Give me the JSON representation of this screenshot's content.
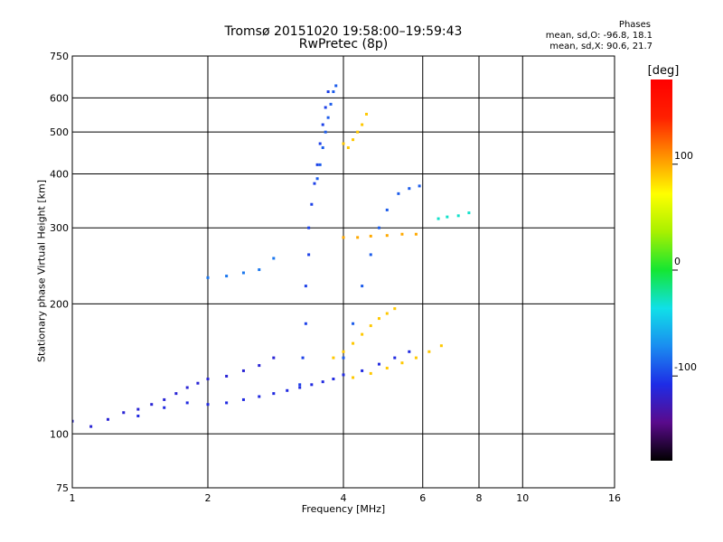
{
  "title": "Tromsø 20151020 19:58:00–19:59:43",
  "subtitle": "RwPretec (8p)",
  "phases": {
    "header": "Phases",
    "o_line": "mean, sd,O: -96.8, 18.1",
    "x_line": "mean, sd,X:  90.6, 21.7"
  },
  "colorbar": {
    "unit": "[deg]",
    "ticks": [
      {
        "value": 100,
        "label": "100"
      },
      {
        "value": 0,
        "label": "0"
      },
      {
        "value": -100,
        "label": "-100"
      }
    ],
    "range": [
      -180,
      180
    ],
    "colors": [
      "#000000",
      "#5a0a8c",
      "#1e2ce6",
      "#1a8cf0",
      "#10e0e8",
      "#14e632",
      "#a8f000",
      "#ffff00",
      "#ff9000",
      "#ff2000",
      "#ff0000"
    ]
  },
  "colors": {
    "o_mode": "#3c28d0",
    "x_mode": "#ffe41a",
    "grid": "#000000"
  },
  "chart_data": {
    "type": "scatter",
    "title": "Tromsø 20151020 19:58:00–19:59:43",
    "subtitle": "RwPretec (8p)",
    "xlabel": "Frequency [MHz]",
    "ylabel": "Stationary phase Virtual Height [km]",
    "x_scale": "log",
    "y_scale": "log",
    "xlim": [
      1,
      16
    ],
    "ylim": [
      75,
      750
    ],
    "x_ticks": [
      1,
      2,
      4,
      6,
      8,
      10,
      16
    ],
    "y_ticks": [
      75,
      100,
      200,
      300,
      400,
      500,
      600,
      750
    ],
    "grid": true,
    "color_scale": "phase [deg], -180 to 180",
    "traces": [
      {
        "name": "",
        "phase_deg": -115,
        "points": [
          [
            1.0,
            107
          ],
          [
            1.1,
            104
          ],
          [
            1.2,
            108
          ],
          [
            1.3,
            112
          ],
          [
            1.4,
            114
          ],
          [
            1.5,
            117
          ],
          [
            1.6,
            120
          ],
          [
            1.7,
            124
          ],
          [
            1.8,
            128
          ],
          [
            1.9,
            131
          ],
          [
            2.0,
            134
          ],
          [
            2.2,
            136
          ],
          [
            2.4,
            140
          ],
          [
            2.6,
            144
          ],
          [
            2.8,
            150
          ]
        ]
      },
      {
        "name": "",
        "phase_deg": -110,
        "points": [
          [
            1.4,
            110
          ],
          [
            1.6,
            115
          ],
          [
            1.8,
            118
          ],
          [
            2.0,
            117
          ],
          [
            2.2,
            118
          ],
          [
            2.4,
            120
          ],
          [
            2.6,
            122
          ],
          [
            2.8,
            124
          ],
          [
            3.0,
            126
          ],
          [
            3.2,
            128
          ],
          [
            3.4,
            130
          ],
          [
            3.6,
            132
          ],
          [
            3.8,
            134
          ],
          [
            4.0,
            137
          ],
          [
            4.4,
            140
          ],
          [
            4.8,
            145
          ],
          [
            5.2,
            150
          ],
          [
            5.6,
            155
          ]
        ]
      },
      {
        "name": "",
        "phase_deg": -100,
        "points": [
          [
            3.2,
            130
          ],
          [
            3.25,
            150
          ],
          [
            3.3,
            180
          ],
          [
            3.3,
            220
          ],
          [
            3.35,
            260
          ],
          [
            3.35,
            300
          ],
          [
            3.4,
            340
          ],
          [
            3.45,
            380
          ],
          [
            3.5,
            420
          ],
          [
            3.55,
            470
          ],
          [
            3.6,
            520
          ],
          [
            3.65,
            570
          ],
          [
            3.7,
            620
          ]
        ]
      },
      {
        "name": "",
        "phase_deg": -90,
        "points": [
          [
            3.5,
            390
          ],
          [
            3.55,
            420
          ],
          [
            3.6,
            460
          ],
          [
            3.65,
            500
          ],
          [
            3.7,
            540
          ],
          [
            3.75,
            580
          ],
          [
            3.8,
            620
          ],
          [
            3.85,
            640
          ]
        ]
      },
      {
        "name": "",
        "phase_deg": -90,
        "points": [
          [
            4.0,
            150
          ],
          [
            4.2,
            180
          ],
          [
            4.4,
            220
          ],
          [
            4.6,
            260
          ],
          [
            4.8,
            300
          ],
          [
            5.0,
            330
          ],
          [
            5.3,
            360
          ],
          [
            5.6,
            370
          ],
          [
            5.9,
            375
          ]
        ]
      },
      {
        "name": "",
        "phase_deg": 90,
        "points": [
          [
            3.8,
            150
          ],
          [
            4.0,
            155
          ],
          [
            4.2,
            162
          ],
          [
            4.4,
            170
          ],
          [
            4.6,
            178
          ],
          [
            4.8,
            185
          ],
          [
            5.0,
            190
          ],
          [
            5.2,
            195
          ]
        ]
      },
      {
        "name": "",
        "phase_deg": 90,
        "points": [
          [
            4.2,
            135
          ],
          [
            4.6,
            138
          ],
          [
            5.0,
            142
          ],
          [
            5.4,
            146
          ],
          [
            5.8,
            150
          ],
          [
            6.2,
            155
          ],
          [
            6.6,
            160
          ]
        ]
      },
      {
        "name": "",
        "phase_deg": 90,
        "points": [
          [
            4.0,
            470
          ],
          [
            4.1,
            460
          ],
          [
            4.2,
            480
          ],
          [
            4.3,
            500
          ],
          [
            4.4,
            520
          ],
          [
            4.5,
            550
          ]
        ]
      },
      {
        "name": "",
        "phase_deg": 100,
        "points": [
          [
            4.0,
            285
          ],
          [
            4.3,
            285
          ],
          [
            4.6,
            287
          ],
          [
            5.0,
            288
          ],
          [
            5.4,
            290
          ],
          [
            5.8,
            290
          ]
        ]
      },
      {
        "name": "",
        "phase_deg": -30,
        "points": [
          [
            6.5,
            315
          ],
          [
            6.8,
            318
          ],
          [
            7.2,
            320
          ],
          [
            7.6,
            325
          ]
        ]
      },
      {
        "name": "",
        "phase_deg": -80,
        "points": [
          [
            2.0,
            230
          ],
          [
            2.2,
            232
          ],
          [
            2.4,
            236
          ],
          [
            2.6,
            240
          ],
          [
            2.8,
            255
          ]
        ]
      }
    ]
  }
}
